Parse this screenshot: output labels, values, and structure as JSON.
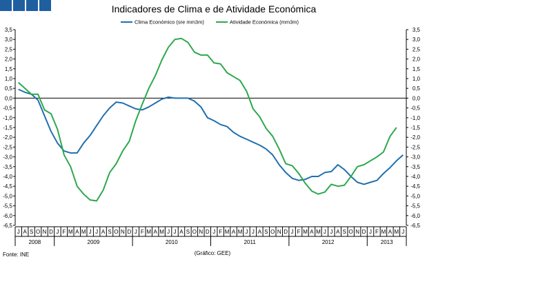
{
  "brand": {
    "square_color": "#1f5fa0",
    "square_count": 4
  },
  "chart_data": {
    "type": "line",
    "title": "Indicadores de Clima e de Atividade Económica",
    "ylim": [
      -6.5,
      3.5
    ],
    "yticks": [
      "3,5",
      "3,0",
      "2,5",
      "2,0",
      "1,5",
      "1,0",
      "0,5",
      "0,0",
      "-0,5",
      "-1,0",
      "-1,5",
      "-2,0",
      "-2,5",
      "-3,0",
      "-3,5",
      "-4,0",
      "-4,5",
      "-5,0",
      "-5,5",
      "-6,0",
      "-6,5"
    ],
    "month_labels": [
      "J",
      "A",
      "S",
      "O",
      "N",
      "D",
      "J",
      "F",
      "M",
      "A",
      "M",
      "J",
      "J",
      "A",
      "S",
      "O",
      "N",
      "D",
      "J",
      "F",
      "M",
      "A",
      "M",
      "J",
      "J",
      "A",
      "S",
      "O",
      "N",
      "D",
      "J",
      "F",
      "M",
      "A",
      "M",
      "J",
      "J",
      "A",
      "S",
      "O",
      "N",
      "D",
      "J",
      "F",
      "M",
      "A",
      "M",
      "J",
      "J",
      "A",
      "S",
      "O",
      "N",
      "D",
      "J",
      "F",
      "M",
      "A",
      "M",
      "J"
    ],
    "years": [
      {
        "label": "2008",
        "start": 0,
        "end": 6
      },
      {
        "label": "2009",
        "start": 6,
        "end": 18
      },
      {
        "label": "2010",
        "start": 18,
        "end": 30
      },
      {
        "label": "2011",
        "start": 30,
        "end": 42
      },
      {
        "label": "2012",
        "start": 42,
        "end": 54
      },
      {
        "label": "2013",
        "start": 54,
        "end": 60
      }
    ],
    "series": [
      {
        "name": "Clima Económico (sre mm3m)",
        "color": "#1f6fae",
        "values": [
          0.45,
          0.3,
          0.2,
          -0.1,
          -0.9,
          -1.7,
          -2.3,
          -2.7,
          -2.8,
          -2.8,
          -2.3,
          -1.9,
          -1.4,
          -0.9,
          -0.5,
          -0.2,
          -0.25,
          -0.4,
          -0.55,
          -0.6,
          -0.45,
          -0.25,
          -0.05,
          0.05,
          0.0,
          0.0,
          0.0,
          -0.15,
          -0.45,
          -1.0,
          -1.15,
          -1.35,
          -1.45,
          -1.75,
          -1.95,
          -2.1,
          -2.25,
          -2.4,
          -2.6,
          -2.9,
          -3.4,
          -3.8,
          -4.1,
          -4.2,
          -4.15,
          -4.0,
          -4.0,
          -3.8,
          -3.75,
          -3.4,
          -3.65,
          -4.0,
          -4.3,
          -4.4,
          -4.3,
          -4.2,
          -3.85,
          -3.55,
          -3.2,
          -2.9
        ]
      },
      {
        "name": "Atividade Económica (mm3m)",
        "color": "#2ca84c",
        "values": [
          0.8,
          0.5,
          0.2,
          0.2,
          -0.6,
          -0.8,
          -1.6,
          -2.9,
          -3.5,
          -4.5,
          -4.9,
          -5.2,
          -5.25,
          -4.7,
          -3.8,
          -3.35,
          -2.7,
          -2.2,
          -1.15,
          -0.3,
          0.5,
          1.15,
          1.95,
          2.6,
          3.0,
          3.05,
          2.85,
          2.35,
          2.2,
          2.2,
          1.8,
          1.75,
          1.3,
          1.1,
          0.9,
          0.35,
          -0.55,
          -0.95,
          -1.55,
          -1.95,
          -2.6,
          -3.35,
          -3.45,
          -3.85,
          -4.35,
          -4.75,
          -4.9,
          -4.8,
          -4.4,
          -4.5,
          -4.45,
          -4.0,
          -3.5,
          -3.4,
          -3.2,
          -3.0,
          -2.75,
          -1.95,
          -1.5
        ]
      }
    ],
    "footnote_left": "Fonte: INE",
    "footnote_center": "(Gráfico: GEE)"
  }
}
